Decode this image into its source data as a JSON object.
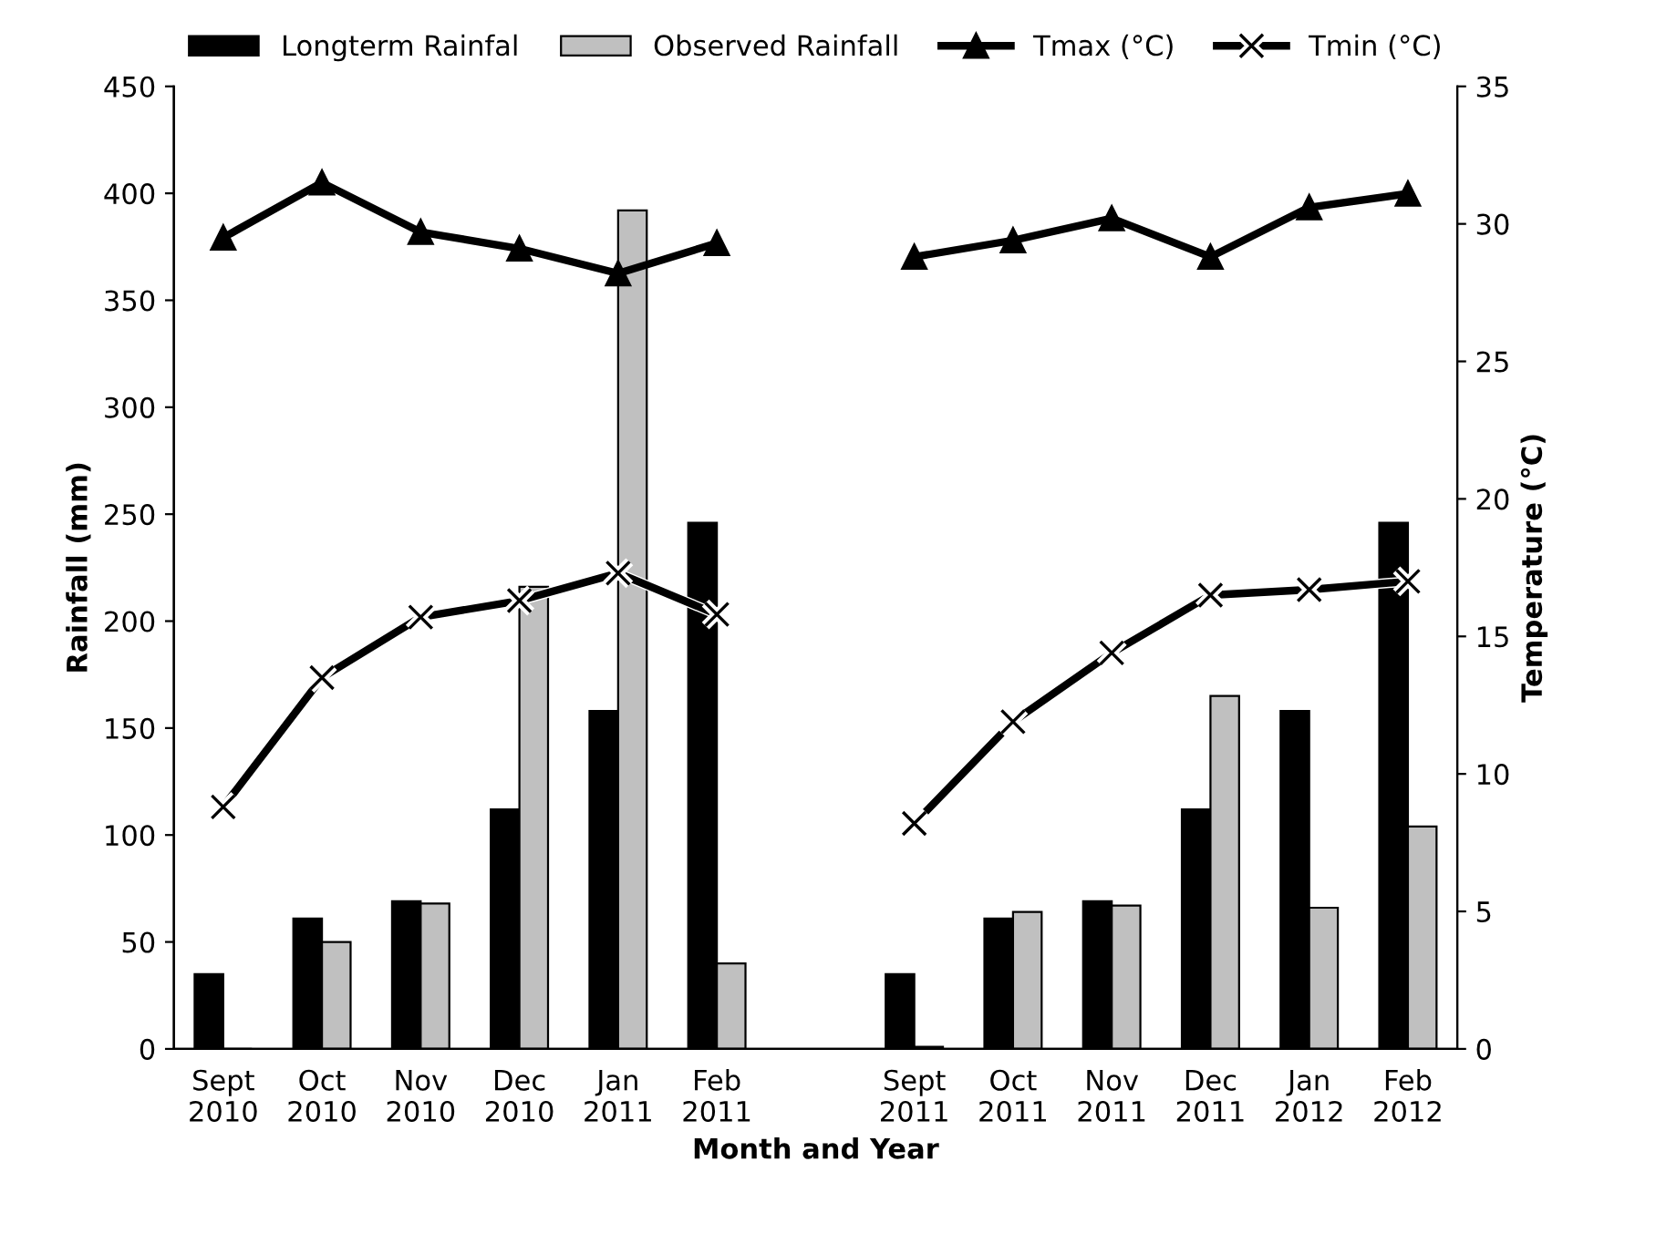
{
  "chart_data": {
    "type": "bar",
    "xlabel": "Month and Year",
    "ylabel": "Rainfall (mm)",
    "y2label": "Temperature (°C)",
    "categories": [
      "Sept\n2010",
      "Oct\n2010",
      "Nov\n2010",
      "Dec\n2010",
      "Jan\n2011",
      "Feb\n2011",
      null,
      "Sept\n2011",
      "Oct\n2011",
      "Nov\n2011",
      "Dec\n2011",
      "Jan\n2012",
      "Feb\n2012"
    ],
    "series": [
      {
        "name": "Longterm Rainfal",
        "color": "#000000",
        "values": [
          35,
          61,
          69,
          112,
          158,
          246,
          null,
          35,
          61,
          69,
          112,
          158,
          246
        ]
      },
      {
        "name": "Observed Rainfall",
        "color": "#c0c0c0",
        "values": [
          0,
          50,
          68,
          216,
          392,
          40,
          null,
          1,
          64,
          67,
          165,
          66,
          104
        ]
      },
      {
        "name": "Tmax (°C)",
        "type": "line",
        "axis": "y2",
        "marker": "triangle",
        "color": "#000000",
        "values": [
          29.5,
          31.5,
          29.7,
          29.1,
          28.2,
          29.3,
          null,
          28.8,
          29.4,
          30.2,
          28.8,
          30.6,
          31.1
        ]
      },
      {
        "name": "Tmin (°C)",
        "type": "line",
        "axis": "y2",
        "marker": "cross",
        "color": "#000000",
        "values": [
          8.8,
          13.5,
          15.7,
          16.3,
          17.3,
          15.8,
          null,
          8.2,
          11.9,
          14.4,
          16.5,
          16.7,
          17.0
        ]
      }
    ],
    "ylim": [
      0,
      450
    ],
    "yticks": [
      0,
      50,
      100,
      150,
      200,
      250,
      300,
      350,
      400,
      450
    ],
    "y2lim": [
      0,
      35
    ],
    "y2ticks": [
      0,
      5,
      10,
      15,
      20,
      25,
      30,
      35
    ],
    "grid": false,
    "legend": "top"
  }
}
